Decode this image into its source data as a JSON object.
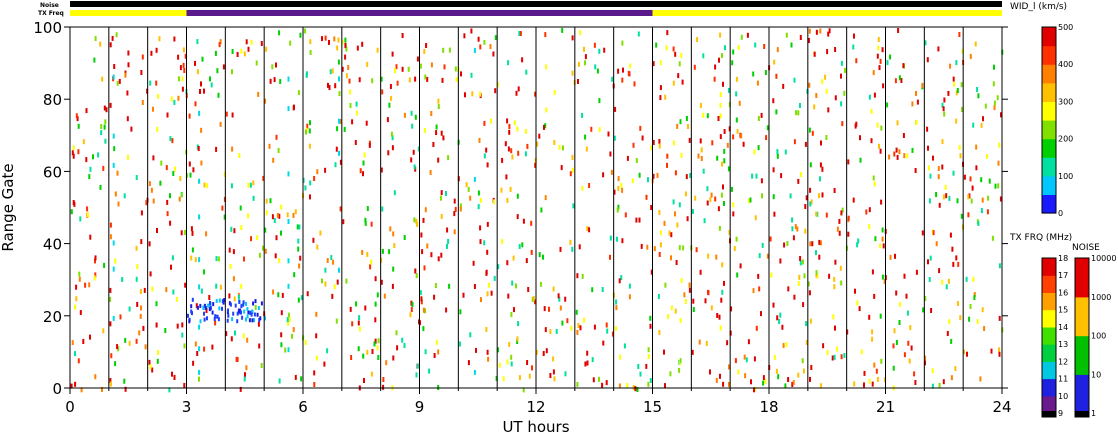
{
  "chart_data": {
    "type": "heatmap",
    "title": "",
    "xlabel": "UT hours",
    "ylabel": "Range Gate",
    "xlim": [
      0,
      24
    ],
    "ylim": [
      0,
      100
    ],
    "x_ticks": [
      0,
      3,
      6,
      9,
      12,
      15,
      18,
      21,
      24
    ],
    "y_ticks": [
      0,
      20,
      40,
      60,
      80,
      100
    ],
    "scan_boundaries_ut": [
      1.0,
      2.0,
      3.0,
      4.0,
      5.0,
      6.0,
      7.0,
      8.0,
      9.0,
      10.0,
      11.0,
      12.0,
      13.0,
      14.0,
      15.0,
      16.0,
      17.0,
      18.0,
      19.0,
      20.0,
      21.0,
      22.0,
      23.0
    ],
    "noise_bar": {
      "label": "Noise",
      "segments": [
        {
          "start": 0,
          "end": 24,
          "color": "#000000"
        }
      ]
    },
    "txfreq_bar": {
      "label": "TX Freq",
      "segments": [
        {
          "start": 0,
          "end": 3,
          "color": "#ffff00"
        },
        {
          "start": 3,
          "end": 15,
          "color": "#5a1a8c"
        },
        {
          "start": 15,
          "end": 24,
          "color": "#ffff00"
        }
      ]
    },
    "colorbar_width": {
      "label": "WID_l (km/s)",
      "ticks": [
        "0",
        "100",
        "200",
        "300",
        "400",
        "500"
      ],
      "stops": [
        "#1a1aff",
        "#00c8ff",
        "#00e0a0",
        "#00d000",
        "#80e000",
        "#ffff00",
        "#ffc000",
        "#ff8000",
        "#ff3000",
        "#e00000"
      ]
    },
    "colorbar_txfreq": {
      "label": "TX FRQ (MHz)",
      "ticks": [
        "9",
        "10",
        "11",
        "12",
        "13",
        "14",
        "15",
        "16",
        "17",
        "18"
      ],
      "colors": [
        "#000000",
        "#6a1a8c",
        "#2020e0",
        "#00c8e0",
        "#00d040",
        "#40e000",
        "#ffff00",
        "#ffa000",
        "#ff4000",
        "#e00000"
      ]
    },
    "colorbar_noise": {
      "label": "NOISE",
      "ticks": [
        "1",
        "10",
        "100",
        "1000",
        "10000"
      ],
      "colors": [
        "#000000",
        "#2020e0",
        "#00c000",
        "#ffc000",
        "#e00000"
      ]
    },
    "series_summary": {
      "name": "",
      "dominant_color": "#e00000",
      "cluster": {
        "ut_start": 3.0,
        "ut_end": 5.0,
        "gate_center": 22,
        "color": "#2060ff"
      }
    }
  }
}
